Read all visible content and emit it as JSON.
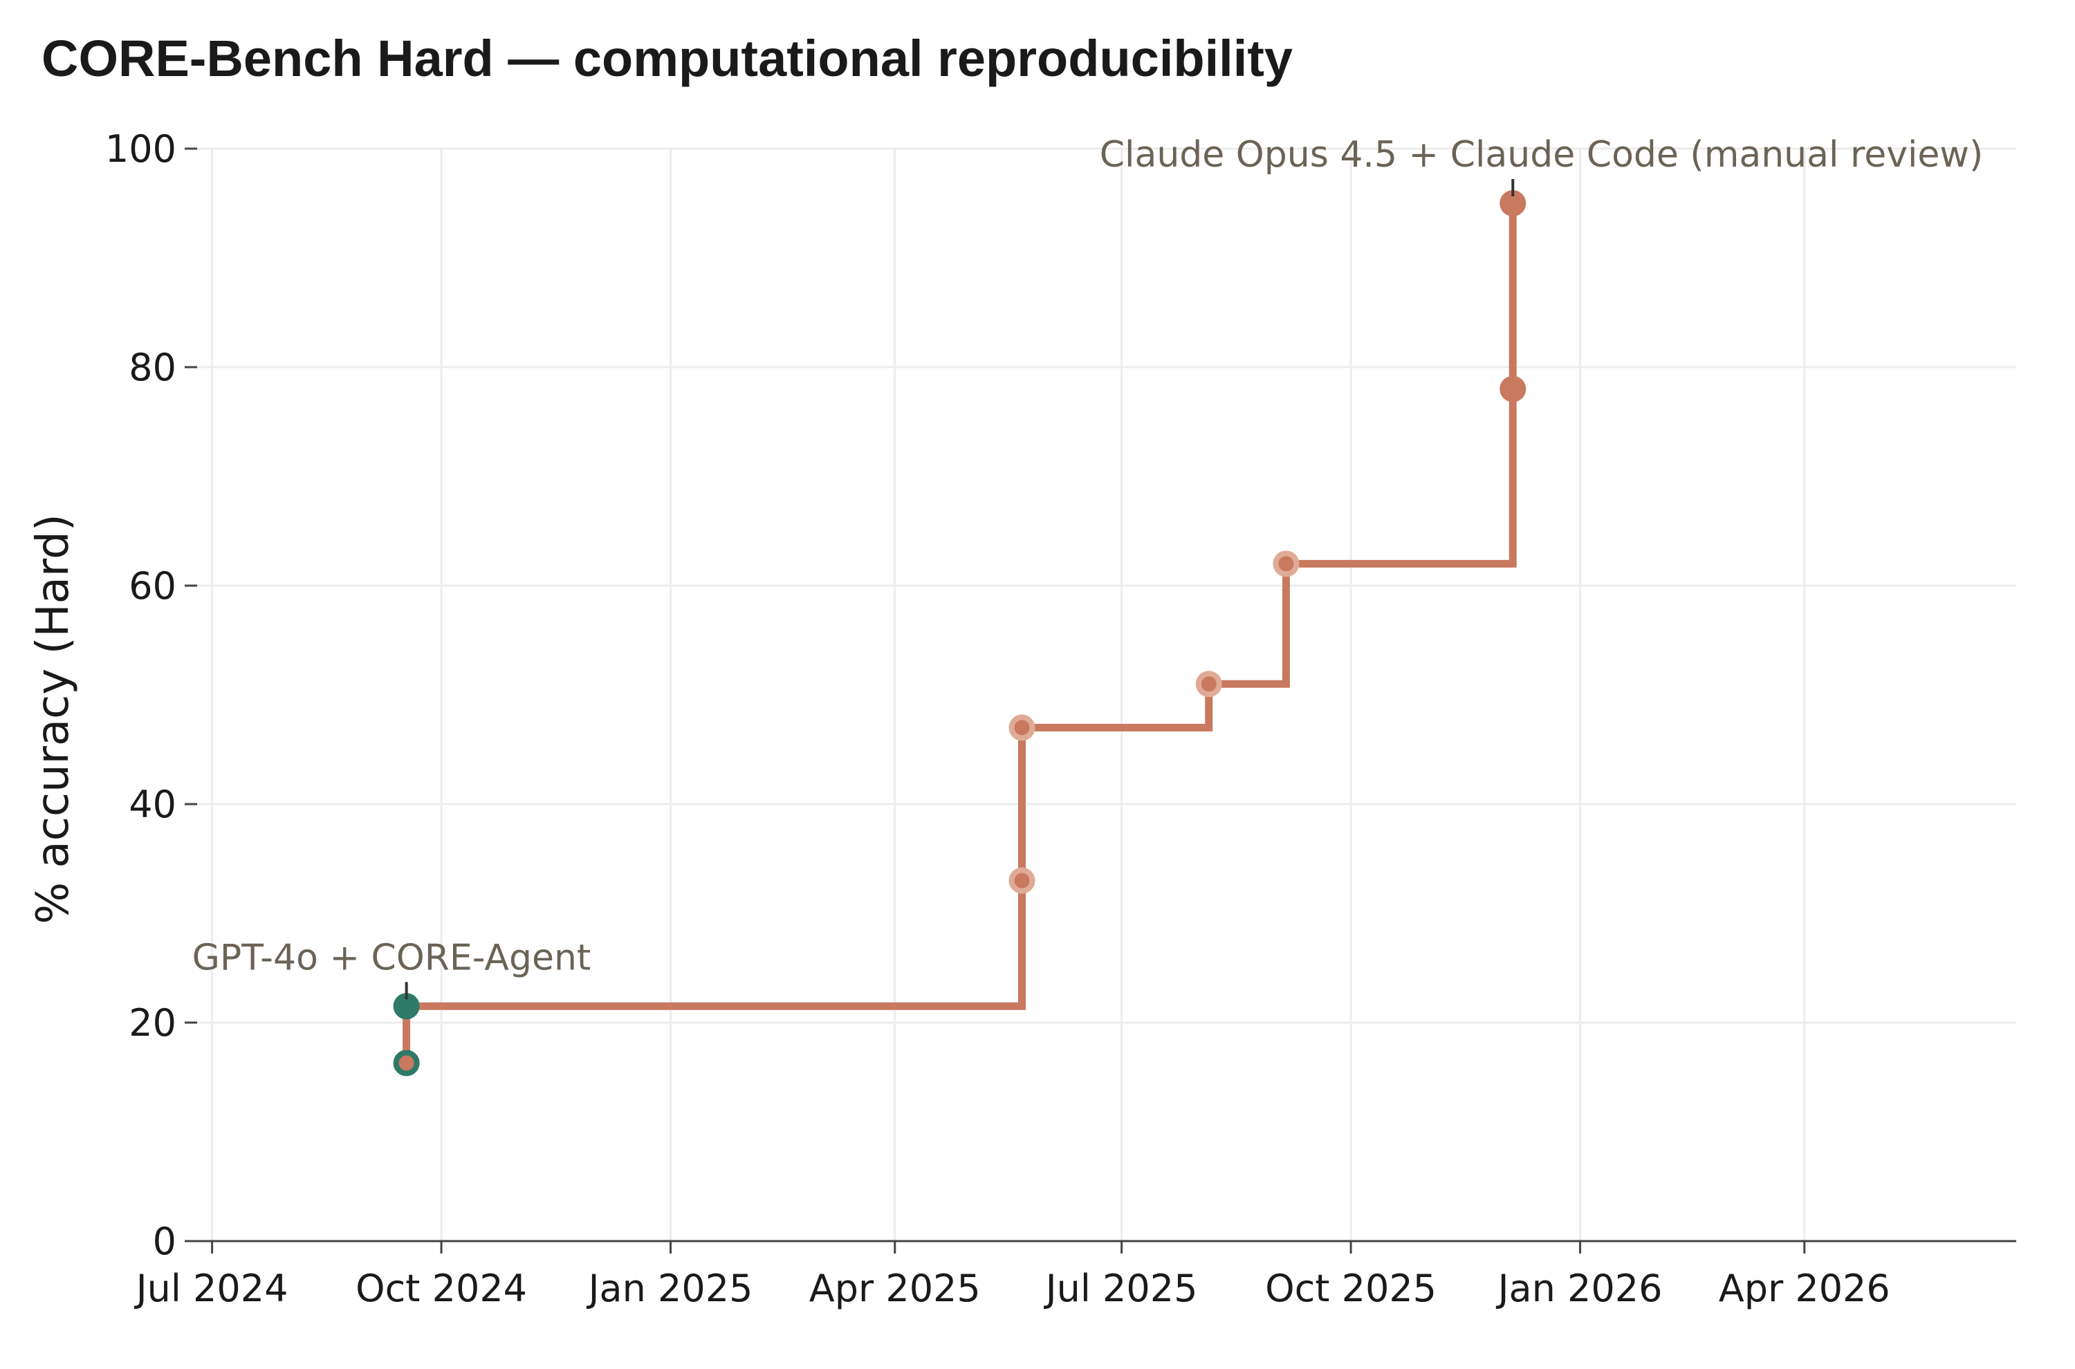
{
  "chart_data": {
    "type": "line",
    "title": "CORE-Bench Hard — computational reproducibility",
    "xlabel": "",
    "ylabel": "% accuracy (Hard)",
    "x_type": "date",
    "xlim": [
      "2024-06-25",
      "2026-06-25"
    ],
    "ylim": [
      0,
      100
    ],
    "x_ticks": [
      {
        "date": "2024-07-01",
        "label": "Jul 2024"
      },
      {
        "date": "2024-10-01",
        "label": "Oct 2024"
      },
      {
        "date": "2025-01-01",
        "label": "Jan 2025"
      },
      {
        "date": "2025-04-01",
        "label": "Apr 2025"
      },
      {
        "date": "2025-07-01",
        "label": "Jul 2025"
      },
      {
        "date": "2025-10-01",
        "label": "Oct 2025"
      },
      {
        "date": "2026-01-01",
        "label": "Jan 2026"
      },
      {
        "date": "2026-04-01",
        "label": "Apr 2026"
      }
    ],
    "y_ticks": [
      0,
      20,
      40,
      60,
      80,
      100
    ],
    "grid": true,
    "frontier": {
      "style": "step",
      "color": "#c8795f",
      "points": [
        {
          "x": "2024-09-17",
          "y": 16.3
        },
        {
          "x": "2024-09-17",
          "y": 21.5
        },
        {
          "x": "2025-05-22",
          "y": 21.5
        },
        {
          "x": "2025-05-22",
          "y": 47
        },
        {
          "x": "2025-08-05",
          "y": 47
        },
        {
          "x": "2025-08-05",
          "y": 51
        },
        {
          "x": "2025-09-05",
          "y": 51
        },
        {
          "x": "2025-09-05",
          "y": 62
        },
        {
          "x": "2025-12-05",
          "y": 62
        },
        {
          "x": "2025-12-05",
          "y": 95
        }
      ]
    },
    "points": [
      {
        "x": "2024-09-17",
        "y": 16.3,
        "fill": "#c8795f",
        "stroke": "#2e7a67"
      },
      {
        "x": "2024-09-17",
        "y": 21.5,
        "fill": "#2e7a67",
        "stroke": "#2e7a67"
      },
      {
        "x": "2025-05-22",
        "y": 33,
        "fill": "#c8795f",
        "stroke": "#e0ab96"
      },
      {
        "x": "2025-05-22",
        "y": 47,
        "fill": "#c8795f",
        "stroke": "#e0ab96"
      },
      {
        "x": "2025-08-05",
        "y": 51,
        "fill": "#c8795f",
        "stroke": "#e0ab96"
      },
      {
        "x": "2025-09-05",
        "y": 62,
        "fill": "#c8795f",
        "stroke": "#e0ab96"
      },
      {
        "x": "2025-12-05",
        "y": 78,
        "fill": "#c8795f",
        "stroke": "#c8795f"
      },
      {
        "x": "2025-12-05",
        "y": 95,
        "fill": "#c8795f",
        "stroke": "#c8795f"
      }
    ],
    "annotations": [
      {
        "text": "GPT-4o + CORE-Agent",
        "x": "2024-09-17",
        "y": 21.5,
        "anchor": "start"
      },
      {
        "text": "Claude Opus 4.5 + Claude Code (manual review)",
        "x": "2025-12-05",
        "y": 95,
        "anchor": "end"
      }
    ]
  }
}
